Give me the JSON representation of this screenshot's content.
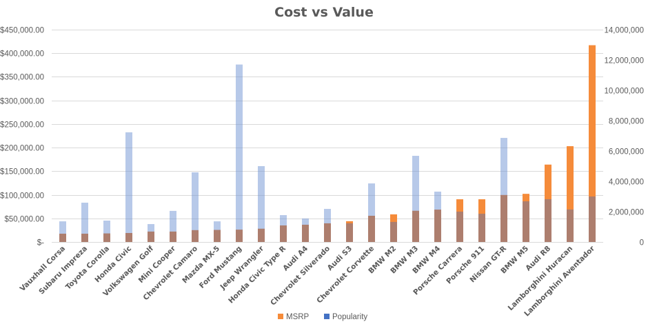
{
  "chart_data": {
    "type": "bar",
    "title": "Cost vs Value",
    "xlabel": "",
    "ylabel": "",
    "y2label": "",
    "categories": [
      "Vauxhall Corsa",
      "Subaru Impreza",
      "Toyota Corolla",
      "Honda Civic",
      "Volkswagen Golf",
      "Mini Cooper",
      "Chevrolet Camaro",
      "Mazda MX-5",
      "Ford Mustang",
      "Jeep Wrangler",
      "Honda Civic Type R",
      "Audi A4",
      "Chevrolet Silverado",
      "Audi S3",
      "Chevrolet Corvette",
      "BMW M2",
      "BMW M3",
      "BMW M4",
      "Porsche Carrera",
      "Porsche 911",
      "Nissan GT-R",
      "BMW M5",
      "Audi R8",
      "Lamborghini Huracan",
      "Lamborghini Aventador"
    ],
    "series": [
      {
        "name": "MSRP",
        "axis": "left",
        "color": "#f58b3a",
        "values": [
          17500,
          17500,
          18000,
          19000,
          22000,
          22000,
          25000,
          25500,
          26000,
          28000,
          35000,
          36500,
          39500,
          44000,
          55500,
          58500,
          66000,
          68500,
          90500,
          90500,
          99500,
          102000,
          164000,
          203000,
          417000
        ]
      },
      {
        "name": "Popularity",
        "axis": "right",
        "color": "#4472c4",
        "values": [
          1360000,
          2590000,
          1410000,
          7230000,
          1180000,
          2050000,
          4590000,
          1360000,
          11700000,
          5000000,
          1770000,
          1550000,
          2180000,
          1230000,
          3860000,
          1320000,
          5680000,
          3320000,
          2000000,
          1860000,
          6860000,
          2680000,
          2820000,
          2140000,
          3000000
        ]
      }
    ],
    "ylim": [
      0,
      450000
    ],
    "y2lim": [
      0,
      14000000
    ],
    "yticks": [
      "$-",
      "$50,000.00",
      "$100,000.00",
      "$150,000.00",
      "$200,000.00",
      "$250,000.00",
      "$300,000.00",
      "$350,000.00",
      "$400,000.00",
      "$450,000.00"
    ],
    "ytick_values": [
      0,
      50000,
      100000,
      150000,
      200000,
      250000,
      300000,
      350000,
      400000,
      450000
    ],
    "y2ticks": [
      "0",
      "2,000,000",
      "4,000,000",
      "6,000,000",
      "8,000,000",
      "10,000,000",
      "12,000,000",
      "14,000,000"
    ],
    "y2tick_values": [
      0,
      2000000,
      4000000,
      6000000,
      8000000,
      10000000,
      12000000,
      14000000
    ],
    "grid": true,
    "legend": "bottom",
    "overlap": "Popularity drawn semi-transparent over MSRP"
  }
}
